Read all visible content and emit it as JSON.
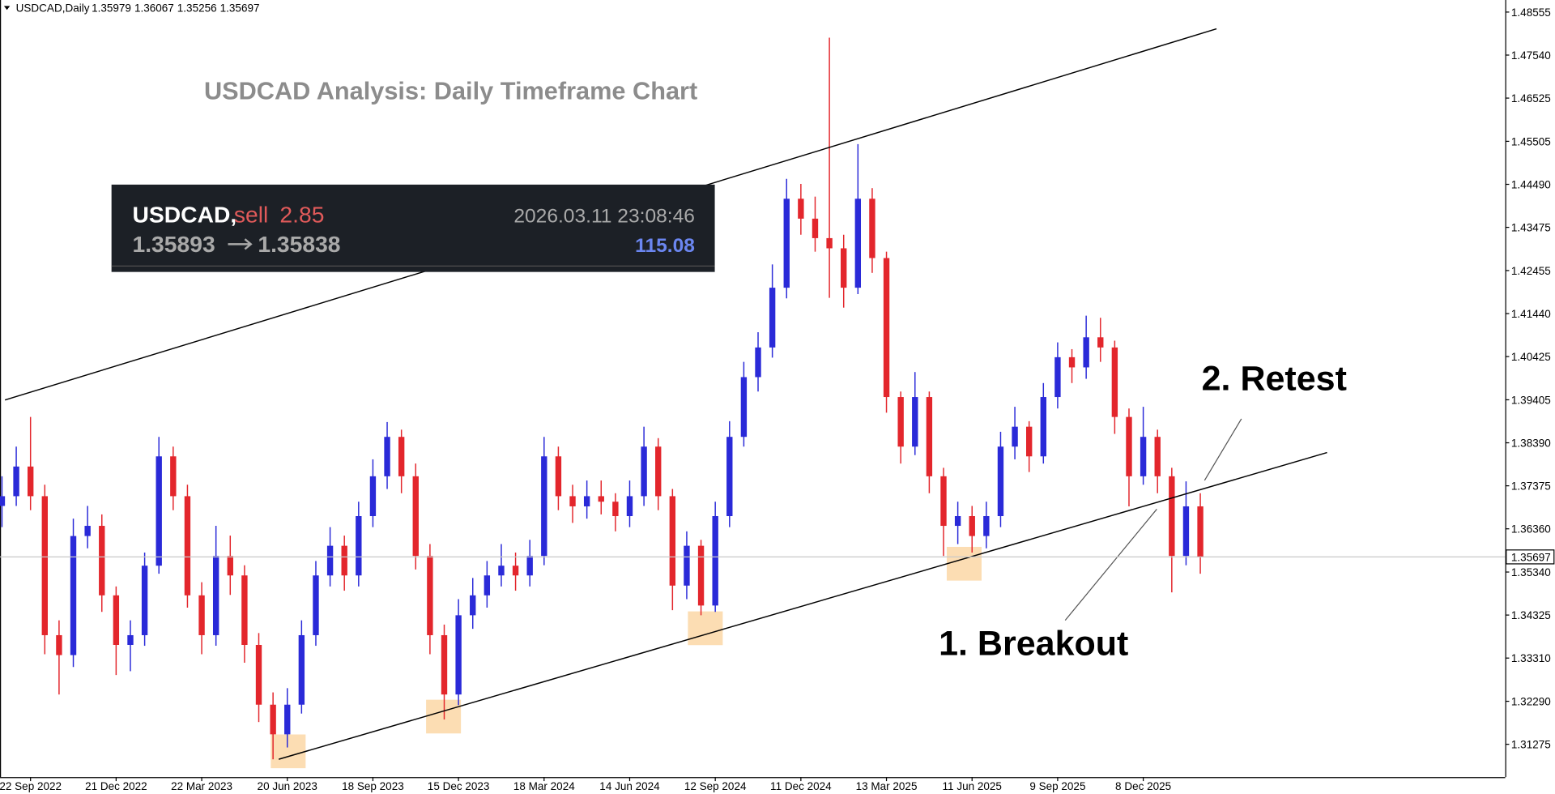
{
  "chart_data": {
    "type": "candlestick",
    "header": {
      "symbol": "USDCAD,Daily",
      "ohlc": [
        1.35979,
        1.36067,
        1.35256,
        1.35697
      ]
    },
    "title": "USDCAD Analysis: Daily Timeframe Chart",
    "trade": {
      "symbol": "USDCAD,",
      "side": "sell",
      "volume": 2.85,
      "time": "2026.03.11 23:08:46",
      "open_price": 1.35893,
      "close_price": 1.35838,
      "profit": 115.08
    },
    "annotations": [
      "1. Breakout",
      "2. Retest"
    ],
    "categories": [
      null,
      null,
      "22 Sep 2022",
      null,
      null,
      null,
      null,
      null,
      "21 Dec 2022",
      null,
      null,
      null,
      null,
      null,
      "22 Mar 2023",
      null,
      null,
      null,
      null,
      null,
      "20 Jun 2023",
      null,
      null,
      null,
      null,
      null,
      "18 Sep 2023",
      null,
      null,
      null,
      null,
      null,
      "15 Dec 2023",
      null,
      null,
      null,
      null,
      null,
      "18 Mar 2024",
      null,
      null,
      null,
      null,
      null,
      "14 Jun 2024",
      null,
      null,
      null,
      null,
      null,
      "12 Sep 2024",
      null,
      null,
      null,
      null,
      null,
      "11 Dec 2024",
      null,
      null,
      null,
      null,
      null,
      "13 Mar 2025",
      null,
      null,
      null,
      null,
      null,
      "11 Jun 2025",
      null,
      null,
      null,
      null,
      null,
      "9 Sep 2025",
      null,
      null,
      null,
      null,
      null,
      "8 Dec 2025",
      null,
      null,
      null,
      null
    ],
    "open": [
      1.369,
      1.3713,
      1.3783,
      1.3713,
      1.3385,
      1.3338,
      1.3619,
      1.3643,
      1.3479,
      1.3362,
      1.3385,
      1.3549,
      1.3807,
      1.3713,
      1.3479,
      1.3385,
      1.3572,
      1.3526,
      1.3362,
      1.3221,
      1.3151,
      1.3221,
      1.3385,
      1.3526,
      1.3596,
      1.3526,
      1.3666,
      1.376,
      1.3853,
      1.376,
      1.3572,
      1.3385,
      1.3245,
      1.3432,
      1.3479,
      1.3526,
      1.3549,
      1.3526,
      1.3572,
      1.3807,
      1.3713,
      1.3689,
      1.3713,
      1.37,
      1.3666,
      1.3713,
      1.383,
      1.3713,
      1.3502,
      1.3596,
      1.3455,
      1.3666,
      1.3853,
      1.3994,
      1.4064,
      1.4205,
      1.4415,
      1.4368,
      1.4322,
      1.4298,
      1.4205,
      1.4415,
      1.4275,
      1.3947,
      1.383,
      1.3947,
      1.376,
      1.3643,
      1.3666,
      1.3619,
      1.3666,
      1.383,
      1.3877,
      1.3807,
      1.3947,
      1.4041,
      1.4017,
      1.4088,
      1.4064,
      1.39,
      1.376,
      1.3853,
      1.376,
      1.3572,
      1.3689
    ],
    "high": [
      1.376,
      1.383,
      1.39,
      1.374,
      1.342,
      1.366,
      1.369,
      1.367,
      1.35,
      1.342,
      1.358,
      1.3853,
      1.383,
      1.374,
      1.351,
      1.3643,
      1.362,
      1.355,
      1.339,
      1.325,
      1.326,
      1.342,
      1.356,
      1.364,
      1.362,
      1.37,
      1.38,
      1.3888,
      1.387,
      1.379,
      1.36,
      1.341,
      1.347,
      1.352,
      1.356,
      1.36,
      1.358,
      1.361,
      1.3853,
      1.383,
      1.374,
      1.375,
      1.375,
      1.372,
      1.375,
      1.3877,
      1.385,
      1.373,
      1.363,
      1.361,
      1.37,
      1.389,
      1.403,
      1.41,
      1.426,
      1.4462,
      1.445,
      1.442,
      1.4795,
      1.433,
      1.4544,
      1.444,
      1.429,
      1.396,
      1.4006,
      1.396,
      1.378,
      1.37,
      1.369,
      1.37,
      1.3865,
      1.3924,
      1.389,
      1.398,
      1.4076,
      1.406,
      1.4139,
      1.4134,
      1.408,
      1.392,
      1.3924,
      1.387,
      1.378,
      1.3748,
      1.372
    ],
    "low": [
      1.364,
      1.369,
      1.368,
      1.334,
      1.3245,
      1.331,
      1.359,
      1.344,
      1.3291,
      1.33,
      1.336,
      1.353,
      1.368,
      1.345,
      1.334,
      1.336,
      1.348,
      1.332,
      1.318,
      1.3092,
      1.312,
      1.32,
      1.336,
      1.35,
      1.349,
      1.35,
      1.364,
      1.373,
      1.372,
      1.354,
      1.334,
      1.3186,
      1.322,
      1.34,
      1.345,
      1.35,
      1.349,
      1.35,
      1.355,
      1.368,
      1.365,
      1.366,
      1.367,
      1.363,
      1.364,
      1.369,
      1.368,
      1.3444,
      1.347,
      1.3432,
      1.344,
      1.364,
      1.383,
      1.396,
      1.404,
      1.418,
      1.433,
      1.429,
      1.4181,
      1.4158,
      1.419,
      1.424,
      1.391,
      1.379,
      1.381,
      1.372,
      1.3572,
      1.36,
      1.358,
      1.359,
      1.364,
      1.38,
      1.377,
      1.379,
      1.392,
      1.398,
      1.399,
      1.403,
      1.386,
      1.3689,
      1.374,
      1.372,
      1.3486,
      1.355,
      1.353
    ],
    "close": [
      1.3713,
      1.3783,
      1.3713,
      1.3385,
      1.3338,
      1.3619,
      1.3643,
      1.3479,
      1.3362,
      1.3385,
      1.3549,
      1.3807,
      1.3713,
      1.3479,
      1.3385,
      1.3572,
      1.3526,
      1.3362,
      1.3221,
      1.3151,
      1.3221,
      1.3385,
      1.3526,
      1.3596,
      1.3526,
      1.3666,
      1.376,
      1.3853,
      1.376,
      1.3572,
      1.3385,
      1.3245,
      1.3432,
      1.3479,
      1.3526,
      1.3549,
      1.3526,
      1.3572,
      1.3807,
      1.3713,
      1.3689,
      1.3713,
      1.37,
      1.3666,
      1.3713,
      1.383,
      1.3713,
      1.3502,
      1.3596,
      1.3455,
      1.3666,
      1.3853,
      1.3994,
      1.4064,
      1.4205,
      1.4415,
      1.4368,
      1.4322,
      1.4298,
      1.4205,
      1.4415,
      1.4275,
      1.3947,
      1.383,
      1.3947,
      1.376,
      1.3643,
      1.3666,
      1.3619,
      1.3666,
      1.383,
      1.3877,
      1.3807,
      1.3947,
      1.4041,
      1.4017,
      1.4088,
      1.4064,
      1.39,
      1.376,
      1.3853,
      1.376,
      1.3572,
      1.3689,
      1.35697
    ],
    "up_color": "#2a2ad8",
    "down_color": "#e3262c",
    "last_price": 1.35697,
    "ylim": [
      1.305,
      1.4884
    ],
    "yticks": [
      1.48555,
      {
        "value": 1.4754,
        "label": "1.47540"
      },
      1.46525,
      1.45505,
      {
        "value": 1.4449,
        "label": "1.44490"
      },
      1.43475,
      1.42455,
      {
        "value": 1.4144,
        "label": "1.41440"
      },
      1.40425,
      1.39405,
      {
        "value": 1.3839,
        "label": "1.38390"
      },
      1.37375,
      {
        "value": 1.3636,
        "label": "1.36360"
      },
      {
        "value": 1.3534,
        "label": "1.35340"
      },
      1.34325,
      {
        "value": 1.3331,
        "label": "1.33310"
      },
      {
        "value": 1.3229,
        "label": "1.32290"
      },
      1.31275
    ],
    "grid": false
  }
}
